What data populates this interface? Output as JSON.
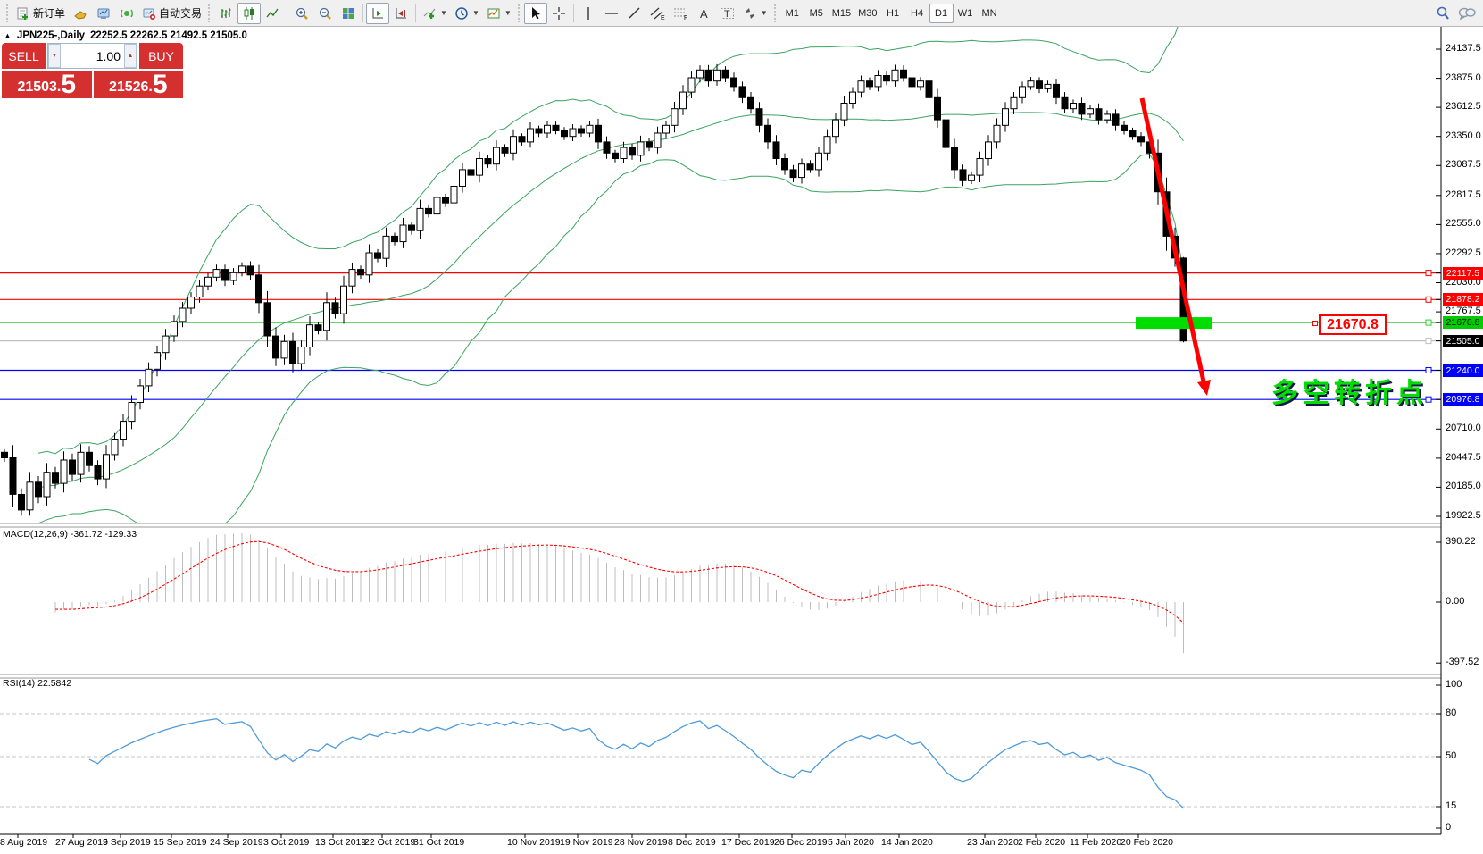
{
  "toolbar": {
    "new_order_label": "新订单",
    "auto_trading_label": "自动交易",
    "timeframes": [
      "M1",
      "M5",
      "M15",
      "M30",
      "H1",
      "H4",
      "D1",
      "W1",
      "MN"
    ],
    "active_timeframe": "D1"
  },
  "trade_panel": {
    "sell_label": "SELL",
    "buy_label": "BUY",
    "volume": "1.00",
    "sell_price_main": "21503.",
    "sell_price_big": "5",
    "buy_price_main": "21526.",
    "buy_price_big": "5"
  },
  "chart_header": {
    "collapse_icon": "▲",
    "title": "JPN225-,Daily",
    "ohlc": "22252.5 22262.5 21492.5 21505.0"
  },
  "annotations": {
    "level_label": "21670.8",
    "turning_point_text": "多空转折点",
    "highlight_color": "#00dd00",
    "arrow_color": "#ff0000"
  },
  "price_axis": {
    "ticks": [
      {
        "label": "24137.5",
        "price": 24137.5
      },
      {
        "label": "23875.0",
        "price": 23875.0
      },
      {
        "label": "23612.5",
        "price": 23612.5
      },
      {
        "label": "23350.0",
        "price": 23350.0
      },
      {
        "label": "23087.5",
        "price": 23087.5
      },
      {
        "label": "22817.5",
        "price": 22817.5
      },
      {
        "label": "22555.0",
        "price": 22555.0
      },
      {
        "label": "22292.5",
        "price": 22292.5
      },
      {
        "label": "22030.0",
        "price": 22030.0
      },
      {
        "label": "21767.5",
        "price": 21767.5
      },
      {
        "label": "20710.0",
        "price": 20710.0
      },
      {
        "label": "20447.5",
        "price": 20447.5
      },
      {
        "label": "20185.0",
        "price": 20185.0
      },
      {
        "label": "19922.5",
        "price": 19922.5
      }
    ],
    "badges": [
      {
        "label": "22117.5",
        "price": 22117.5,
        "bg": "#ff0000",
        "fg": "#ffffff"
      },
      {
        "label": "21878.2",
        "price": 21878.2,
        "bg": "#ff0000",
        "fg": "#ffffff"
      },
      {
        "label": "21670.8",
        "price": 21670.8,
        "bg": "#00cc00",
        "fg": "#000000"
      },
      {
        "label": "21505.0",
        "price": 21505.0,
        "bg": "#000000",
        "fg": "#ffffff"
      },
      {
        "label": "21240.0",
        "price": 21240.0,
        "bg": "#0000ff",
        "fg": "#ffffff"
      },
      {
        "label": "20976.8",
        "price": 20976.8,
        "bg": "#0000ff",
        "fg": "#ffffff"
      }
    ]
  },
  "date_axis": [
    "8 Aug 2019",
    "27 Aug 2019",
    "5 Sep 2019",
    "15 Sep 2019",
    "24 Sep 2019",
    "3 Oct 2019",
    "13 Oct 2019",
    "22 Oct 2019",
    "31 Oct 2019",
    "10 Nov 2019",
    "19 Nov 2019",
    "28 Nov 2019",
    "8 Dec 2019",
    "17 Dec 2019",
    "26 Dec 2019",
    "5 Jan 2020",
    "14 Jan 2020",
    "23 Jan 2020",
    "2 Feb 2020",
    "11 Feb 2020",
    "20 Feb 2020"
  ],
  "chart_data": [
    {
      "type": "candlestick",
      "symbol": "JPN225-",
      "timeframe": "Daily",
      "last_bar_ohlc": [
        22252.5,
        22262.5,
        21492.5,
        21505.0
      ],
      "visible_price_range": [
        19922.5,
        24137.5
      ],
      "closes": [
        20450,
        20120,
        19980,
        20230,
        20100,
        20320,
        20220,
        20430,
        20300,
        20500,
        20380,
        20260,
        20480,
        20620,
        20780,
        20950,
        21100,
        21250,
        21400,
        21550,
        21680,
        21800,
        21900,
        22000,
        22080,
        22150,
        22050,
        22120,
        22180,
        22100,
        21850,
        21550,
        21350,
        21500,
        21300,
        21450,
        21650,
        21600,
        21850,
        21750,
        22000,
        22150,
        22100,
        22300,
        22250,
        22450,
        22400,
        22550,
        22500,
        22700,
        22650,
        22800,
        22750,
        22900,
        23050,
        23000,
        23150,
        23100,
        23250,
        23200,
        23350,
        23300,
        23420,
        23380,
        23450,
        23400,
        23350,
        23420,
        23380,
        23450,
        23300,
        23200,
        23150,
        23250,
        23180,
        23300,
        23250,
        23380,
        23450,
        23600,
        23750,
        23880,
        23950,
        23850,
        23950,
        23880,
        23800,
        23700,
        23600,
        23450,
        23300,
        23150,
        23050,
        22980,
        23100,
        23050,
        23200,
        23350,
        23500,
        23650,
        23750,
        23850,
        23800,
        23900,
        23850,
        23950,
        23880,
        23800,
        23850,
        23700,
        23500,
        23250,
        23050,
        22950,
        23000,
        23150,
        23300,
        23450,
        23600,
        23700,
        23800,
        23850,
        23780,
        23820,
        23700,
        23600,
        23650,
        23550,
        23600,
        23500,
        23550,
        23450,
        23400,
        23350,
        23300,
        23200,
        22850,
        22450,
        22252.5,
        21505
      ],
      "bollinger": {
        "period": 20,
        "deviation": 2,
        "color": "#3aa45f"
      },
      "colors": {
        "bull": "#ffffff",
        "bear": "#000000",
        "outline": "#000000"
      },
      "hlines": [
        {
          "price": 22117.5,
          "color": "#ff0000"
        },
        {
          "price": 21878.2,
          "color": "#ff0000"
        },
        {
          "price": 21670.8,
          "color": "#2dcc2d"
        },
        {
          "price": 21505.0,
          "color": "#c0c0c0"
        },
        {
          "price": 21240.0,
          "color": "#0000ff"
        },
        {
          "price": 20976.8,
          "color": "#0000ff"
        }
      ]
    },
    {
      "type": "macd",
      "label": "MACD(12,26,9)",
      "params": [
        12,
        26,
        9
      ],
      "macd_value": "-361.72",
      "signal_value": "-129.33",
      "y_ticks": [
        "390.22",
        "0.00",
        "-397.52"
      ],
      "colors": {
        "histogram": "#bdbdbd",
        "signal": "#ff0000"
      }
    },
    {
      "type": "rsi",
      "label": "RSI(14)",
      "period": 14,
      "value": "22.5842",
      "y_ticks": [
        "100",
        "80",
        "50",
        "15",
        "0"
      ],
      "levels": [
        80,
        50,
        15
      ],
      "colors": {
        "line": "#4f9bd9"
      }
    }
  ]
}
